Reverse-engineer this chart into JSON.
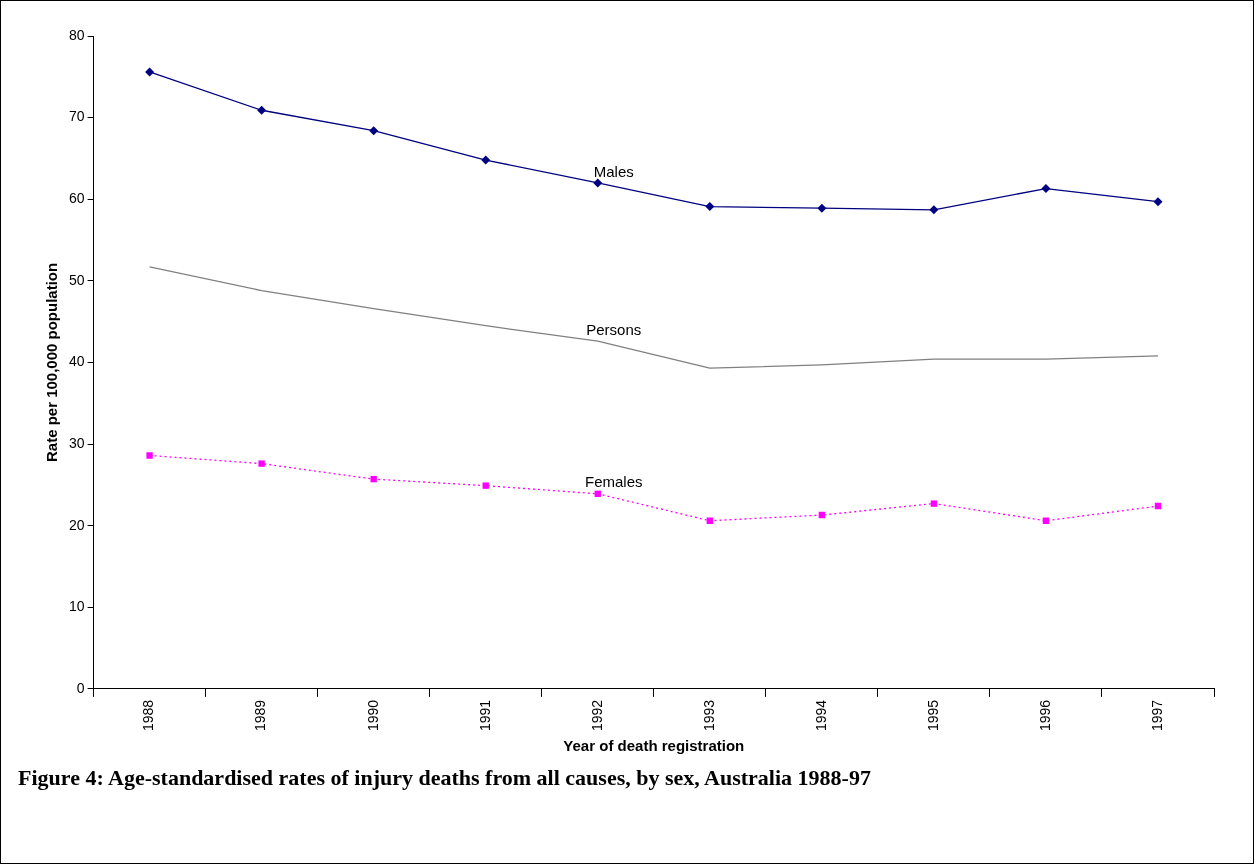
{
  "chart_data": {
    "type": "line",
    "title": "Figure 4: Age-standardised rates of injury deaths from all causes, by sex, Australia 1988-97",
    "xlabel": "Year of death registration",
    "ylabel": "Rate per 100,000 population",
    "categories": [
      "1988",
      "1989",
      "1990",
      "1991",
      "1992",
      "1993",
      "1994",
      "1995",
      "1996",
      "1997"
    ],
    "series": [
      {
        "name": "Males",
        "color": "#000080",
        "marker": "diamond",
        "line_style": "solid",
        "values": [
          75.6,
          70.9,
          68.4,
          64.8,
          62.0,
          59.1,
          58.9,
          58.7,
          61.3,
          59.7
        ]
      },
      {
        "name": "Persons",
        "color": "#808080",
        "marker": "none",
        "line_style": "solid",
        "values": [
          51.7,
          48.8,
          46.6,
          44.5,
          42.6,
          39.3,
          39.7,
          40.4,
          40.4,
          40.8
        ]
      },
      {
        "name": "Females",
        "color": "#ff00ff",
        "marker": "square",
        "line_style": "dotted",
        "values": [
          28.6,
          27.6,
          25.7,
          24.9,
          23.9,
          20.6,
          21.3,
          22.7,
          20.6,
          22.4
        ]
      }
    ],
    "ylim": [
      0,
      80
    ],
    "yticks": [
      0,
      10,
      20,
      30,
      40,
      50,
      60,
      70,
      80
    ],
    "grid": false,
    "legend": false
  }
}
